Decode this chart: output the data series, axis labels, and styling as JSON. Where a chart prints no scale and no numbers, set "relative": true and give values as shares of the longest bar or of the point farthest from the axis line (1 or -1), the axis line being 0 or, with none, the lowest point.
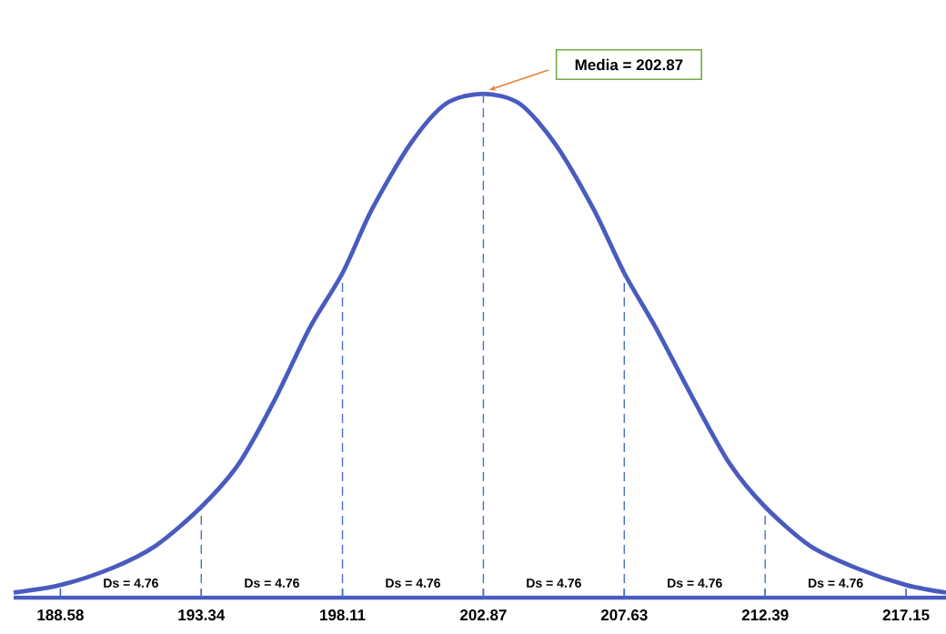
{
  "chart_data": {
    "type": "line",
    "relative": true,
    "x": [
      187.0,
      188.58,
      190.3,
      191.8,
      193.34,
      194.6,
      195.8,
      197.0,
      198.11,
      199.1,
      200.4,
      201.6,
      202.87,
      204.1,
      205.3,
      206.6,
      207.63,
      208.7,
      210.0,
      211.2,
      212.39,
      213.9,
      215.5,
      217.15,
      218.5
    ],
    "series": [
      {
        "color": "#4a5bbf",
        "values": [
          0.01,
          0.025,
          0.058,
          0.103,
          0.18,
          0.265,
          0.39,
          0.535,
          0.644,
          0.77,
          0.9,
          0.98,
          1,
          0.98,
          0.9,
          0.77,
          0.644,
          0.535,
          0.39,
          0.265,
          0.18,
          0.103,
          0.058,
          0.025,
          0.01
        ]
      }
    ],
    "xlim": [
      187.0,
      218.5
    ],
    "xticks": [
      188.58,
      193.34,
      198.11,
      202.87,
      207.63,
      212.39,
      217.15
    ],
    "ref_lines": [
      {
        "axis": "x",
        "value": 193.34,
        "line_style": "dashed",
        "color": "#4a6fd0"
      },
      {
        "axis": "x",
        "value": 198.11,
        "line_style": "dashed",
        "color": "#4a6fd0"
      },
      {
        "axis": "x",
        "value": 202.87,
        "line_style": "dashed",
        "color": "#4a6fd0"
      },
      {
        "axis": "x",
        "value": 207.63,
        "line_style": "dashed",
        "color": "#4a6fd0"
      },
      {
        "axis": "x",
        "value": 212.39,
        "line_style": "dashed",
        "color": "#4a6fd0"
      }
    ],
    "annotations": [
      "Media = 202.87",
      "Ds = 4.76",
      "Ds = 4.76",
      "Ds = 4.76",
      "Ds = 4.76",
      "Ds = 4.76",
      "Ds = 4.76"
    ],
    "grid": false,
    "marker": "none",
    "line_style": "solid"
  }
}
